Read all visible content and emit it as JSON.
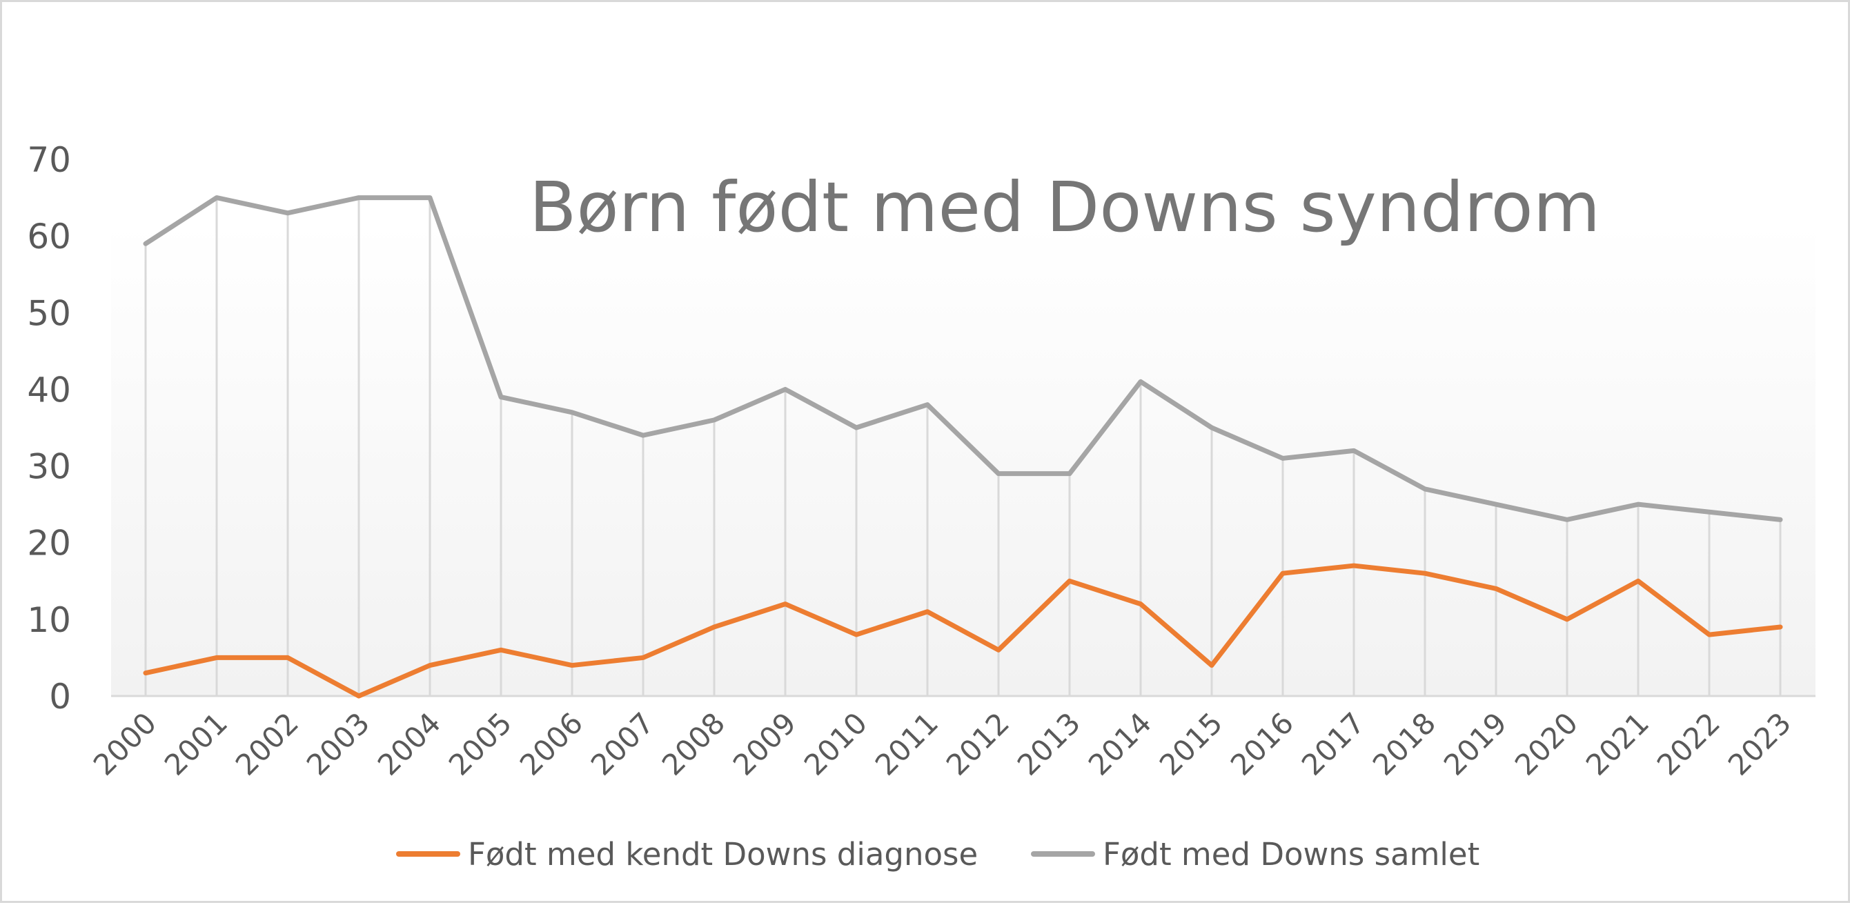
{
  "chart_data": {
    "type": "line",
    "title": "Børn født med Downs syndrom",
    "xlabel": "",
    "ylabel": "",
    "ylim": [
      0,
      70
    ],
    "yticks": [
      0,
      10,
      20,
      30,
      40,
      50,
      60,
      70
    ],
    "grid": "vertical dropdown lines",
    "legend_position": "bottom",
    "categories": [
      "2000",
      "2001",
      "2002",
      "2003",
      "2004",
      "2005",
      "2006",
      "2007",
      "2008",
      "2009",
      "2010",
      "2011",
      "2012",
      "2013",
      "2014",
      "2015",
      "2016",
      "2017",
      "2018",
      "2019",
      "2020",
      "2021",
      "2022",
      "2023"
    ],
    "series": [
      {
        "name": "Født med kendt Downs diagnose",
        "color": "#ed7d31",
        "values": [
          3,
          5,
          5,
          0,
          4,
          6,
          4,
          5,
          9,
          12,
          8,
          11,
          6,
          15,
          12,
          4,
          16,
          17,
          16,
          14,
          10,
          15,
          8,
          9
        ]
      },
      {
        "name": "Født med Downs samlet",
        "color": "#a5a5a5",
        "values": [
          59,
          65,
          63,
          65,
          65,
          39,
          37,
          34,
          36,
          40,
          35,
          38,
          29,
          29,
          41,
          35,
          31,
          32,
          27,
          25,
          23,
          25,
          24,
          23
        ]
      }
    ]
  }
}
